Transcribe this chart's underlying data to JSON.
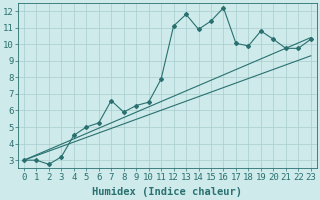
{
  "xlabel": "Humidex (Indice chaleur)",
  "bg_color": "#ceeaea",
  "grid_color": "#aacccc",
  "line_color": "#2a7070",
  "xlim": [
    -0.5,
    23.5
  ],
  "ylim": [
    2.5,
    12.5
  ],
  "xticks": [
    0,
    1,
    2,
    3,
    4,
    5,
    6,
    7,
    8,
    9,
    10,
    11,
    12,
    13,
    14,
    15,
    16,
    17,
    18,
    19,
    20,
    21,
    22,
    23
  ],
  "yticks": [
    3,
    4,
    5,
    6,
    7,
    8,
    9,
    10,
    11,
    12
  ],
  "series1_x": [
    0,
    1,
    2,
    3,
    4,
    5,
    6,
    7,
    8,
    9,
    10,
    11,
    12,
    13,
    14,
    15,
    16,
    17,
    18,
    19,
    20,
    21,
    22,
    23
  ],
  "series1_y": [
    3.0,
    3.0,
    2.75,
    3.2,
    4.5,
    5.0,
    5.25,
    6.6,
    5.9,
    6.3,
    6.5,
    7.9,
    11.1,
    11.8,
    10.9,
    11.4,
    12.2,
    10.05,
    9.9,
    10.8,
    10.3,
    9.75,
    9.75,
    10.3
  ],
  "series2_x": [
    0,
    23
  ],
  "series2_y": [
    3.0,
    10.4
  ],
  "series3_x": [
    0,
    23
  ],
  "series3_y": [
    3.0,
    9.3
  ],
  "xlabel_fontsize": 7.5,
  "tick_fontsize": 6.5
}
